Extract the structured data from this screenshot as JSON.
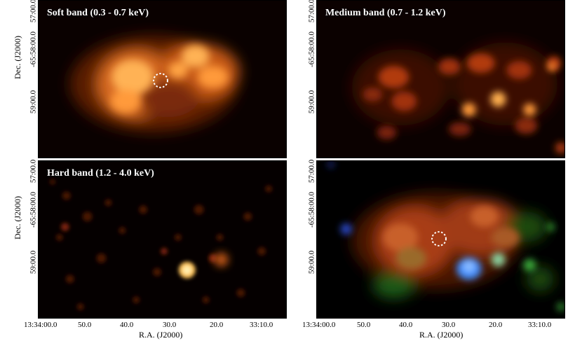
{
  "figure": {
    "panels": [
      {
        "key": "soft",
        "title": "Soft band (0.3 - 0.7 keV)",
        "color_map": "orange",
        "has_circle": true
      },
      {
        "key": "medium",
        "title": "Medium band (0.7 - 1.2 keV)",
        "color_map": "orange",
        "has_circle": false
      },
      {
        "key": "hard",
        "title": "Hard band (1.2 - 4.0 keV)",
        "color_map": "orange",
        "has_circle": false
      },
      {
        "key": "rgb",
        "title": "",
        "color_map": "rgb-composite",
        "has_circle": true
      }
    ],
    "axes": {
      "x_label": "R.A. (J2000)",
      "y_label": "Dec. (J2000)",
      "x_ticks": [
        "13:34:00.0",
        "50.0",
        "40.0",
        "30.0",
        "20.0",
        "33:10.0"
      ],
      "y_ticks_top": [
        "57:00.0",
        "-65:58:00.0",
        "59:00.0"
      ],
      "y_ticks_bottom": [
        "57:00.0",
        "-65:58:00.0",
        "59:00.0"
      ]
    },
    "colors": {
      "soft_glow": "#ff9a3a",
      "medium_glow": "#ff6a1a",
      "hard_glow": "#ffd46a",
      "blue_source": "#3b8cff",
      "green_source": "#3fb23f",
      "circle": "#ffffff"
    }
  }
}
